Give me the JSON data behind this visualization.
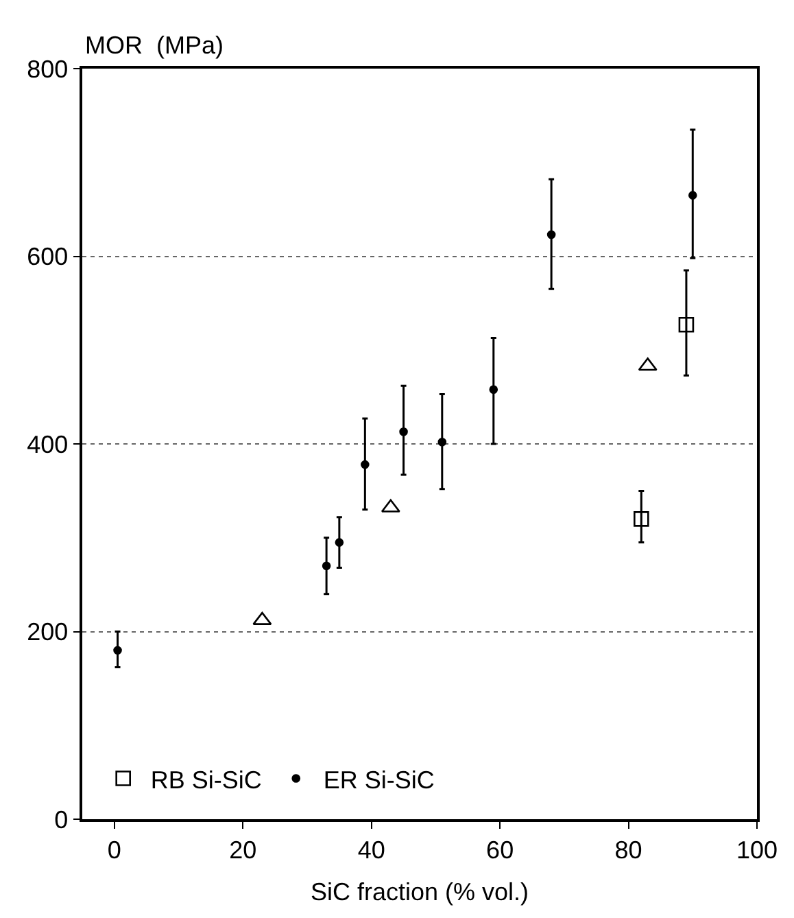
{
  "chart_data": {
    "type": "scatter",
    "xlabel": "SiC fraction (% vol.)",
    "ylabel": "MOR  (MPa)",
    "xlim": [
      -5,
      100
    ],
    "xticks": [
      0,
      20,
      40,
      60,
      80,
      100
    ],
    "ylim": [
      0,
      800
    ],
    "yticks": [
      0,
      200,
      400,
      600,
      800
    ],
    "grid": "y",
    "legend": "bottom",
    "series": [
      {
        "name": "RB Si-SiC",
        "color": "#000000",
        "marker": "square",
        "x": [
          82,
          89
        ],
        "values": [
          320,
          527
        ],
        "errors": [
          [
            295,
            350
          ],
          [
            473,
            585
          ]
        ]
      },
      {
        "name": "ER Si-SiC",
        "color": "#000000",
        "marker": "circle",
        "x": [
          0.5,
          33,
          35,
          39,
          45,
          51,
          59,
          68,
          90
        ],
        "values": [
          180,
          270,
          295,
          378,
          413,
          402,
          458,
          623,
          665
        ],
        "errors": [
          [
            162,
            200
          ],
          [
            240,
            300
          ],
          [
            268,
            322
          ],
          [
            330,
            427
          ],
          [
            367,
            462
          ],
          [
            352,
            453
          ],
          [
            400,
            513
          ],
          [
            565,
            682
          ],
          [
            598,
            735
          ]
        ]
      },
      {
        "color": "#000000",
        "marker": "triangle",
        "x": [
          23,
          43,
          83
        ],
        "values": [
          212,
          332,
          483
        ]
      }
    ]
  }
}
